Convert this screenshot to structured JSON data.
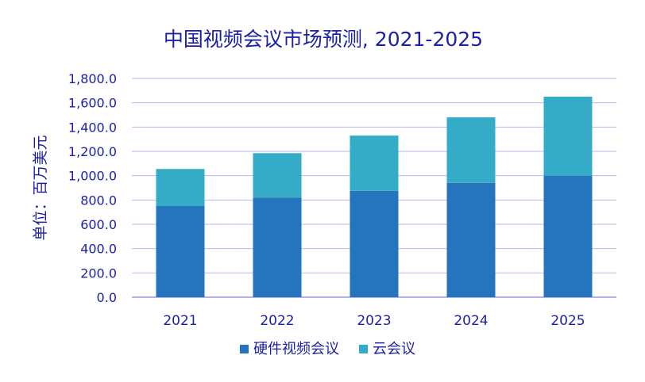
{
  "chart_data": {
    "type": "bar",
    "stacked": true,
    "title": "中国视频会议市场预测, 2021-2025",
    "ylabel": "单位：百万美元",
    "xlabel": "",
    "categories": [
      "2021",
      "2022",
      "2023",
      "2024",
      "2025"
    ],
    "series": [
      {
        "name": "硬件视频会议",
        "values": [
          750,
          820,
          875,
          940,
          1000
        ],
        "color": "#2474BE"
      },
      {
        "name": "云会议",
        "values": [
          305,
          365,
          455,
          540,
          650
        ],
        "color": "#34ACC8"
      }
    ],
    "ylim": [
      0,
      1800
    ],
    "yticks": [
      "0.0",
      "200.0",
      "400.0",
      "600.0",
      "800.0",
      "1,000.0",
      "1,200.0",
      "1,400.0",
      "1,600.0",
      "1,800.0"
    ],
    "grid": true,
    "legend_position": "bottom",
    "colors": {
      "text": "#1B1FA8",
      "grid": "#B4B4F0",
      "axis": "#9A9AE6"
    }
  }
}
